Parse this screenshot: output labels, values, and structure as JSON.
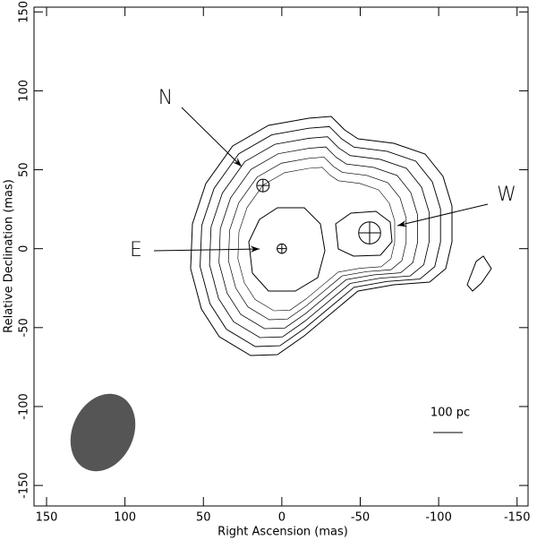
{
  "chart_data": {
    "type": "contour",
    "xlabel": "Right Ascension  (mas)",
    "ylabel": "Relative Declination  (mas)",
    "xlim": [
      158,
      -157
    ],
    "xticks": [
      150,
      100,
      50,
      0,
      -50,
      -100,
      -150
    ],
    "ylim": [
      -163,
      153
    ],
    "yticks": [
      150,
      100,
      50,
      0,
      -50,
      -100,
      -150
    ],
    "components": {
      "labels": [
        "E",
        "N",
        "W"
      ],
      "x": [
        0,
        12,
        -56
      ],
      "y": [
        0,
        40,
        10
      ],
      "size": [
        3,
        4,
        7
      ]
    },
    "scale_label": "100 pc",
    "color": "#000000",
    "beam_color": "#555555"
  }
}
